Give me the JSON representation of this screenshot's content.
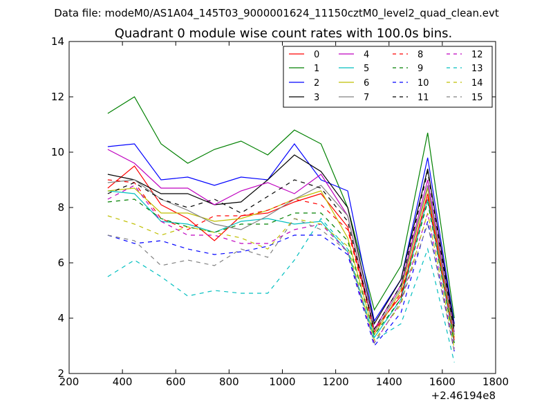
{
  "chart_data": {
    "type": "line",
    "suptitle": "Data file: modeM0/AS1A04_145T03_9000001624_11150cztM0_level2_quad_clean.evt",
    "title": "Quadrant 0 module wise count rates with 100.0s bins.",
    "xlabel": "",
    "ylabel": "",
    "xlim": [
      200,
      1800
    ],
    "ylim": [
      2,
      14
    ],
    "xticks": [
      "200",
      "400",
      "600",
      "800",
      "1000",
      "1200",
      "1400",
      "1600",
      "1800"
    ],
    "yticks": [
      "2",
      "4",
      "6",
      "8",
      "10",
      "12",
      "14"
    ],
    "x_offset_label": "+2.46194e8",
    "legend_position": "top-right",
    "x": [
      345,
      445,
      545,
      645,
      745,
      845,
      945,
      1045,
      1145,
      1245,
      1345,
      1445,
      1545,
      1645
    ],
    "series": [
      {
        "name": "0",
        "color": "#ff0000",
        "dash": "solid",
        "values": [
          8.7,
          9.5,
          8.1,
          7.6,
          6.8,
          7.7,
          7.8,
          8.2,
          8.5,
          7.3,
          3.6,
          4.8,
          8.5,
          3.3
        ]
      },
      {
        "name": "1",
        "color": "#008000",
        "dash": "solid",
        "values": [
          11.4,
          12.0,
          10.3,
          9.6,
          10.1,
          10.4,
          9.9,
          10.8,
          10.3,
          8.0,
          4.3,
          5.9,
          10.7,
          4.0
        ]
      },
      {
        "name": "2",
        "color": "#0000ff",
        "dash": "solid",
        "values": [
          10.2,
          10.3,
          9.0,
          9.1,
          8.8,
          9.1,
          9.0,
          10.3,
          9.0,
          8.6,
          3.9,
          5.4,
          9.8,
          3.8
        ]
      },
      {
        "name": "3",
        "color": "#000000",
        "dash": "solid",
        "values": [
          9.2,
          9.0,
          8.5,
          8.5,
          8.1,
          8.2,
          9.0,
          9.9,
          9.3,
          8.0,
          3.8,
          5.4,
          9.4,
          3.7
        ]
      },
      {
        "name": "4",
        "color": "#bf00bf",
        "dash": "solid",
        "values": [
          10.1,
          9.6,
          8.7,
          8.7,
          8.1,
          8.6,
          8.9,
          8.5,
          9.2,
          7.7,
          3.6,
          5.2,
          9.0,
          3.5
        ]
      },
      {
        "name": "5",
        "color": "#00bfbf",
        "dash": "solid",
        "values": [
          8.6,
          8.5,
          7.5,
          7.4,
          7.1,
          7.5,
          7.6,
          7.4,
          7.5,
          6.4,
          3.3,
          4.7,
          8.3,
          3.1
        ]
      },
      {
        "name": "6",
        "color": "#bfbf00",
        "dash": "solid",
        "values": [
          8.6,
          8.7,
          7.8,
          7.8,
          7.5,
          7.6,
          7.9,
          8.3,
          8.6,
          6.9,
          3.4,
          5.0,
          8.7,
          3.3
        ]
      },
      {
        "name": "7",
        "color": "#808080",
        "dash": "solid",
        "values": [
          8.9,
          9.0,
          8.3,
          7.9,
          7.4,
          7.2,
          7.7,
          8.3,
          8.8,
          7.7,
          3.5,
          5.1,
          8.8,
          3.4
        ]
      },
      {
        "name": "8",
        "color": "#ff0000",
        "dash": "dashed",
        "values": [
          9.0,
          8.9,
          7.6,
          7.2,
          7.7,
          7.7,
          7.9,
          8.3,
          8.1,
          7.2,
          3.5,
          4.9,
          8.4,
          3.2
        ]
      },
      {
        "name": "9",
        "color": "#008000",
        "dash": "dashed",
        "values": [
          8.2,
          8.3,
          7.6,
          7.3,
          7.1,
          7.4,
          7.4,
          7.8,
          7.8,
          6.8,
          3.4,
          4.7,
          8.2,
          3.1
        ]
      },
      {
        "name": "10",
        "color": "#0000ff",
        "dash": "dashed",
        "values": [
          7.0,
          6.7,
          6.8,
          6.5,
          6.3,
          6.4,
          6.6,
          7.0,
          7.0,
          6.3,
          3.0,
          4.2,
          7.5,
          2.8
        ]
      },
      {
        "name": "11",
        "color": "#000000",
        "dash": "dashed",
        "values": [
          8.5,
          8.9,
          8.3,
          8.0,
          8.3,
          7.8,
          8.4,
          9.0,
          8.7,
          7.5,
          3.6,
          5.2,
          9.3,
          3.5
        ]
      },
      {
        "name": "12",
        "color": "#bf00bf",
        "dash": "dashed",
        "values": [
          8.3,
          8.8,
          7.5,
          7.0,
          7.0,
          6.7,
          6.7,
          7.2,
          7.4,
          6.4,
          3.1,
          4.6,
          7.8,
          2.9
        ]
      },
      {
        "name": "13",
        "color": "#00bfbf",
        "dash": "dashed",
        "values": [
          5.5,
          6.1,
          5.5,
          4.8,
          5.0,
          4.9,
          4.9,
          6.1,
          7.6,
          6.5,
          3.2,
          3.8,
          6.5,
          2.4
        ]
      },
      {
        "name": "14",
        "color": "#bfbf00",
        "dash": "dashed",
        "values": [
          7.7,
          7.4,
          7.0,
          7.3,
          7.1,
          6.9,
          6.5,
          7.6,
          7.4,
          6.6,
          3.2,
          4.5,
          7.8,
          2.9
        ]
      },
      {
        "name": "15",
        "color": "#808080",
        "dash": "dashed",
        "values": [
          7.0,
          6.8,
          5.9,
          6.1,
          5.9,
          6.5,
          6.2,
          7.6,
          7.2,
          6.4,
          3.1,
          4.6,
          7.4,
          2.8
        ]
      }
    ]
  }
}
